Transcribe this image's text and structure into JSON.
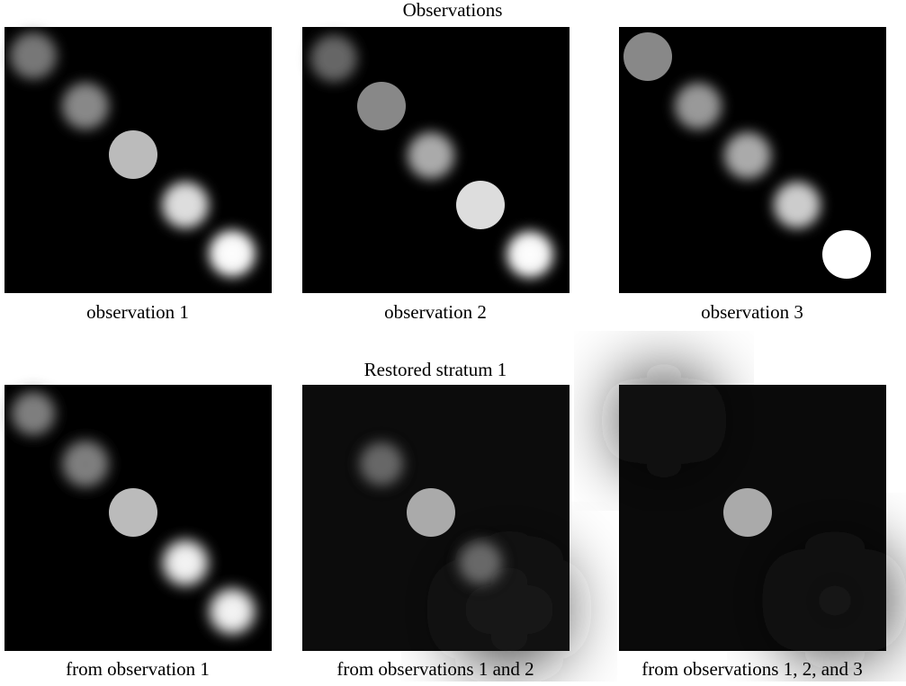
{
  "figure": {
    "rows": [
      {
        "title": "Observations",
        "captions": [
          "observation 1",
          "observation 2",
          "observation 3"
        ]
      },
      {
        "title": "Restored stratum 1",
        "captions": [
          "from observation 1",
          "from observations 1 and 2",
          "from observations 1, 2, and 3"
        ]
      }
    ]
  }
}
